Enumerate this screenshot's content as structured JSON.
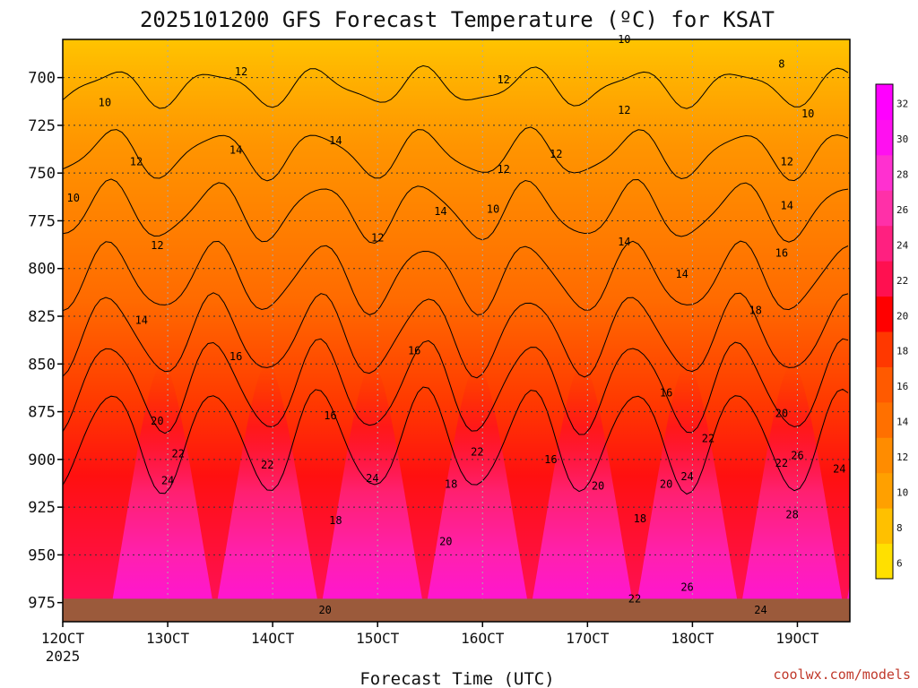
{
  "chart_data": {
    "type": "heatmap",
    "title": "2025101200 GFS Forecast Temperature (ºC) for KSAT",
    "xlabel": "Forecast Time (UTC)",
    "ylabel": "",
    "credit": "coolwx.com/models",
    "x_tick_labels": [
      "12OCT",
      "13OCT",
      "14OCT",
      "15OCT",
      "16OCT",
      "17OCT",
      "18OCT",
      "19OCT"
    ],
    "x_first_year": "2025",
    "y_tick_labels": [
      "700",
      "725",
      "750",
      "775",
      "800",
      "825",
      "850",
      "875",
      "900",
      "925",
      "950",
      "975"
    ],
    "y_range_hpa": [
      680,
      985
    ],
    "x_range_days": [
      12.0,
      19.5
    ],
    "ground_color": "#9b5a3b",
    "colorbar": {
      "levels": [
        "6",
        "8",
        "10",
        "12",
        "14",
        "16",
        "18",
        "20",
        "22",
        "24",
        "26",
        "28",
        "30",
        "32"
      ],
      "colors": [
        "#ffe000",
        "#ffc000",
        "#ffa000",
        "#ff8c00",
        "#ff7000",
        "#ff5a00",
        "#ff3800",
        "#ff0000",
        "#ff1050",
        "#ff2080",
        "#ff30a8",
        "#ff30d0",
        "#ff10f0",
        "#ff00ff"
      ]
    },
    "contour_labels": [
      {
        "text": "10",
        "day": 12.4,
        "p": 713
      },
      {
        "text": "12",
        "day": 12.7,
        "p": 744
      },
      {
        "text": "10",
        "day": 12.1,
        "p": 763
      },
      {
        "text": "12",
        "day": 12.9,
        "p": 788
      },
      {
        "text": "14",
        "day": 12.75,
        "p": 827
      },
      {
        "text": "12",
        "day": 13.7,
        "p": 697
      },
      {
        "text": "14",
        "day": 13.65,
        "p": 738
      },
      {
        "text": "16",
        "day": 13.65,
        "p": 846
      },
      {
        "text": "20",
        "day": 12.9,
        "p": 880
      },
      {
        "text": "22",
        "day": 13.1,
        "p": 897
      },
      {
        "text": "24",
        "day": 13.0,
        "p": 911
      },
      {
        "text": "14",
        "day": 14.6,
        "p": 733
      },
      {
        "text": "12",
        "day": 16.2,
        "p": 701
      },
      {
        "text": "12",
        "day": 15.0,
        "p": 784
      },
      {
        "text": "16",
        "day": 14.55,
        "p": 877
      },
      {
        "text": "22",
        "day": 13.95,
        "p": 903
      },
      {
        "text": "16",
        "day": 15.35,
        "p": 843
      },
      {
        "text": "24",
        "day": 14.95,
        "p": 910
      },
      {
        "text": "18",
        "day": 14.6,
        "p": 932
      },
      {
        "text": "20",
        "day": 14.5,
        "p": 979
      },
      {
        "text": "14",
        "day": 15.6,
        "p": 770
      },
      {
        "text": "10",
        "day": 16.1,
        "p": 769
      },
      {
        "text": "12",
        "day": 16.2,
        "p": 748
      },
      {
        "text": "12",
        "day": 16.7,
        "p": 740
      },
      {
        "text": "22",
        "day": 15.95,
        "p": 896
      },
      {
        "text": "18",
        "day": 15.7,
        "p": 913
      },
      {
        "text": "20",
        "day": 15.65,
        "p": 943
      },
      {
        "text": "16",
        "day": 16.65,
        "p": 900
      },
      {
        "text": "20",
        "day": 17.1,
        "p": 914
      },
      {
        "text": "10",
        "day": 17.35,
        "p": 680
      },
      {
        "text": "12",
        "day": 17.35,
        "p": 717
      },
      {
        "text": "14",
        "day": 17.35,
        "p": 786
      },
      {
        "text": "14",
        "day": 17.9,
        "p": 803
      },
      {
        "text": "16",
        "day": 17.75,
        "p": 865
      },
      {
        "text": "20",
        "day": 17.75,
        "p": 913
      },
      {
        "text": "18",
        "day": 17.5,
        "p": 931
      },
      {
        "text": "22",
        "day": 17.45,
        "p": 973
      },
      {
        "text": "24",
        "day": 17.95,
        "p": 909
      },
      {
        "text": "22",
        "day": 18.15,
        "p": 889
      },
      {
        "text": "26",
        "day": 17.95,
        "p": 967
      },
      {
        "text": "18",
        "day": 18.6,
        "p": 822
      },
      {
        "text": "8",
        "day": 18.85,
        "p": 693
      },
      {
        "text": "10",
        "day": 19.1,
        "p": 719
      },
      {
        "text": "12",
        "day": 18.9,
        "p": 744
      },
      {
        "text": "14",
        "day": 18.9,
        "p": 767
      },
      {
        "text": "16",
        "day": 18.85,
        "p": 792
      },
      {
        "text": "20",
        "day": 18.85,
        "p": 876
      },
      {
        "text": "22",
        "day": 18.85,
        "p": 902
      },
      {
        "text": "26",
        "day": 19.0,
        "p": 898
      },
      {
        "text": "24",
        "day": 19.4,
        "p": 905
      },
      {
        "text": "28",
        "day": 18.95,
        "p": 929
      },
      {
        "text": "24",
        "day": 18.65,
        "p": 979
      }
    ]
  }
}
